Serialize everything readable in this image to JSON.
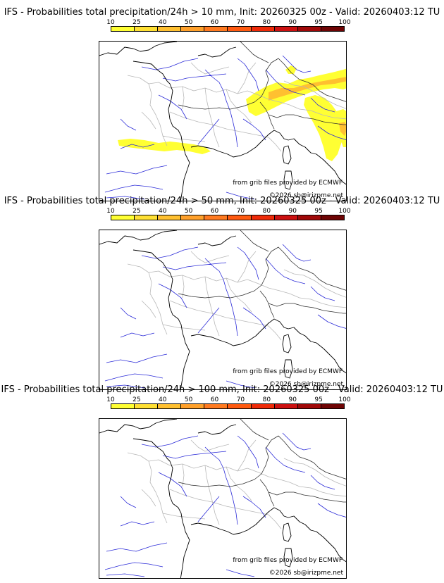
{
  "colorbar": {
    "ticks": [
      "10",
      "25",
      "40",
      "50",
      "60",
      "70",
      "80",
      "90",
      "95",
      "100"
    ],
    "colors": [
      "#ffff33",
      "#ffe033",
      "#ffc030",
      "#ffa02a",
      "#ff7a20",
      "#ff5a10",
      "#ee2a08",
      "#cc1010",
      "#a00808",
      "#6e0404"
    ]
  },
  "credits": {
    "source": "from grib files provided by ECMWF",
    "copyright": "©2026 sb@irizpme.net"
  },
  "panels": [
    {
      "title": "IFS - Probabilities total precipitation/24h > 10 mm, Init: 20260325 00z - Valid: 20260403:12 TU",
      "threshold_mm": 10,
      "has_precip": true
    },
    {
      "title": "IFS - Probabilities total precipitation/24h > 50 mm, Init: 20260325 00z - Valid: 20260403:12 TU",
      "threshold_mm": 50,
      "has_precip": false
    },
    {
      "title": "IFS - Probabilities total precipitation/24h > 100 mm, Init: 20260325 00z - Valid: 20260403:12 TU",
      "threshold_mm": 100,
      "has_precip": false
    }
  ]
}
